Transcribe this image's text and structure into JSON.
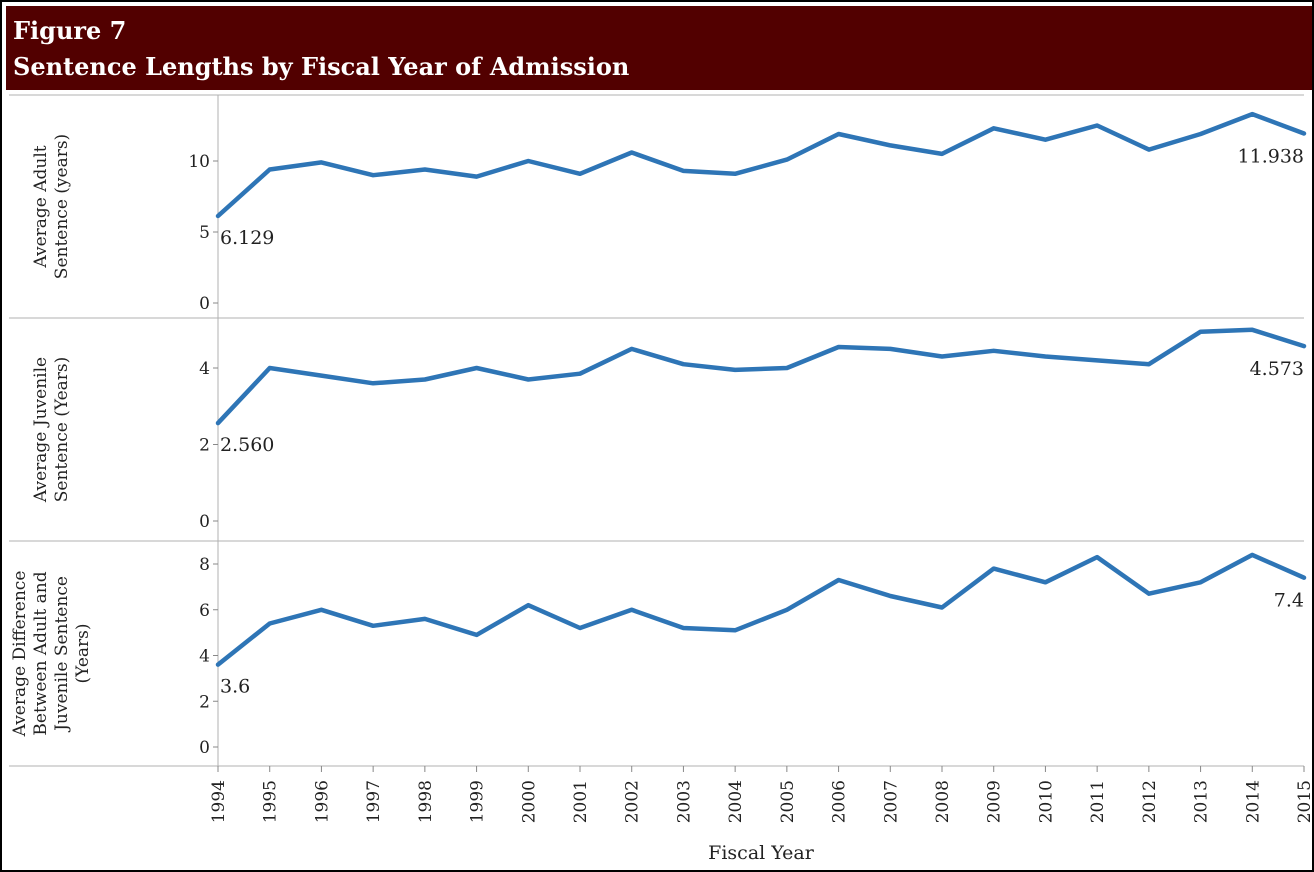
{
  "figure": {
    "label": "Figure 7",
    "title": "Sentence Lengths by Fiscal Year of Admission"
  },
  "colors": {
    "header_bg": "#520000",
    "header_text": "#ffffff",
    "line": "#2e75b6"
  },
  "chart_data": [
    {
      "type": "line",
      "ylabel": [
        "Average Adult",
        "Sentence (years)"
      ],
      "ylim": [
        0,
        13.7
      ],
      "yticks": [
        0,
        5,
        10
      ],
      "x": [
        "1994",
        "1995",
        "1996",
        "1997",
        "1998",
        "1999",
        "2000",
        "2001",
        "2002",
        "2003",
        "2004",
        "2005",
        "2006",
        "2007",
        "2008",
        "2009",
        "2010",
        "2011",
        "2012",
        "2013",
        "2014",
        "2015"
      ],
      "values": [
        6.129,
        9.4,
        9.9,
        9.0,
        9.4,
        8.9,
        10.0,
        9.1,
        10.6,
        9.3,
        9.1,
        10.1,
        11.9,
        11.1,
        10.5,
        12.3,
        11.5,
        12.5,
        10.8,
        11.9,
        13.3,
        11.938
      ],
      "annotations": [
        {
          "index": 0,
          "text": "6.129"
        },
        {
          "index": 21,
          "text": "11.938"
        }
      ]
    },
    {
      "type": "line",
      "ylabel": [
        "Average Juvenile",
        "Sentence (Years)"
      ],
      "ylim": [
        0,
        5.25
      ],
      "yticks": [
        0,
        2,
        4
      ],
      "x": [
        "1994",
        "1995",
        "1996",
        "1997",
        "1998",
        "1999",
        "2000",
        "2001",
        "2002",
        "2003",
        "2004",
        "2005",
        "2006",
        "2007",
        "2008",
        "2009",
        "2010",
        "2011",
        "2012",
        "2013",
        "2014",
        "2015"
      ],
      "values": [
        2.56,
        4.0,
        3.8,
        3.6,
        3.7,
        4.0,
        3.7,
        3.85,
        4.5,
        4.1,
        3.95,
        4.0,
        4.55,
        4.5,
        4.3,
        4.45,
        4.3,
        4.2,
        4.1,
        4.95,
        5.0,
        4.573
      ],
      "annotations": [
        {
          "index": 0,
          "text": "2.560"
        },
        {
          "index": 21,
          "text": "4.573"
        }
      ]
    },
    {
      "type": "line",
      "ylabel": [
        "Average Difference",
        "Between Adult and",
        "Juvenile Sentence",
        "(Years)"
      ],
      "ylim": [
        0,
        8.8
      ],
      "yticks": [
        0,
        2,
        4,
        6,
        8
      ],
      "x": [
        "1994",
        "1995",
        "1996",
        "1997",
        "1998",
        "1999",
        "2000",
        "2001",
        "2002",
        "2003",
        "2004",
        "2005",
        "2006",
        "2007",
        "2008",
        "2009",
        "2010",
        "2011",
        "2012",
        "2013",
        "2014",
        "2015"
      ],
      "values": [
        3.6,
        5.4,
        6.0,
        5.3,
        5.6,
        4.9,
        6.2,
        5.2,
        6.0,
        5.2,
        5.1,
        6.0,
        7.3,
        6.6,
        6.1,
        7.8,
        7.2,
        8.3,
        6.7,
        7.2,
        8.4,
        7.4
      ],
      "annotations": [
        {
          "index": 0,
          "text": "3.6"
        },
        {
          "index": 21,
          "text": "7.4"
        }
      ]
    }
  ],
  "x_axis": {
    "label": "Fiscal Year",
    "ticks": [
      "1994",
      "1995",
      "1996",
      "1997",
      "1998",
      "1999",
      "2000",
      "2001",
      "2002",
      "2003",
      "2004",
      "2005",
      "2006",
      "2007",
      "2008",
      "2009",
      "2010",
      "2011",
      "2012",
      "2013",
      "2014",
      "2015"
    ]
  }
}
